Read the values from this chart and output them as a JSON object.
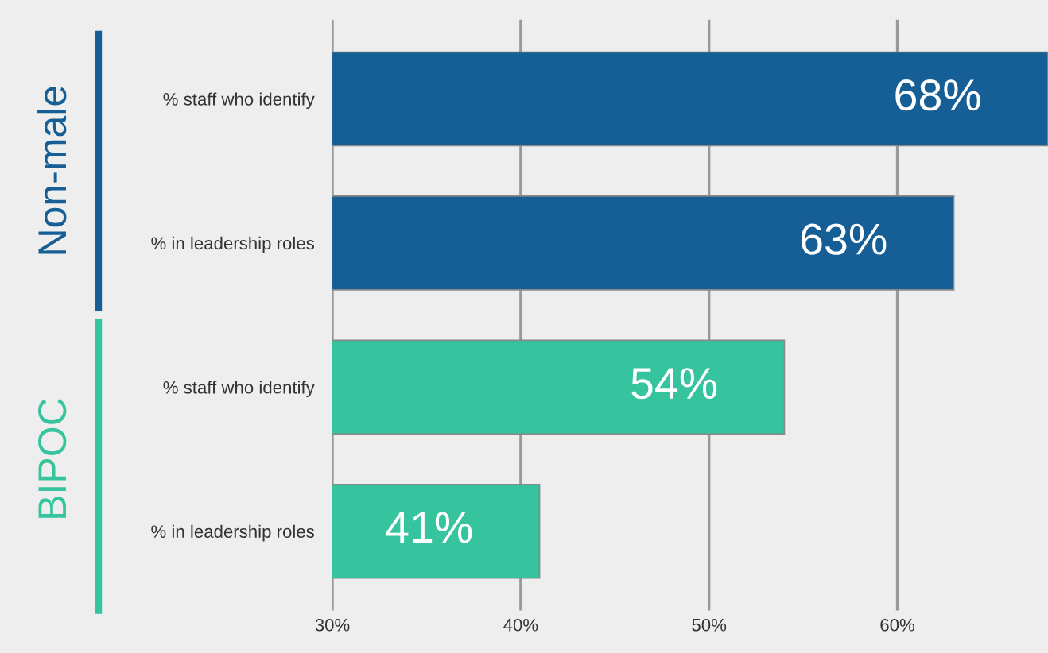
{
  "chart_data": {
    "type": "bar",
    "orientation": "horizontal",
    "categories": [
      "% staff who identify",
      "% in leadership roles",
      "% staff who identify",
      "% in leadership roles"
    ],
    "values": [
      68,
      63,
      54,
      41
    ],
    "colors": [
      "#155f96",
      "#155f96",
      "#35c49d",
      "#35c49d"
    ],
    "value_labels": [
      "68%",
      "63%",
      "54%",
      "41%"
    ],
    "xlim": [
      30,
      68
    ],
    "xticks": [
      {
        "value": 30,
        "label": "30%"
      },
      {
        "value": 40,
        "label": "40%"
      },
      {
        "value": 50,
        "label": "50%"
      },
      {
        "value": 60,
        "label": "60%"
      }
    ],
    "grid": "x",
    "annotations": [
      "Non-male",
      "BIPOC"
    ]
  }
}
